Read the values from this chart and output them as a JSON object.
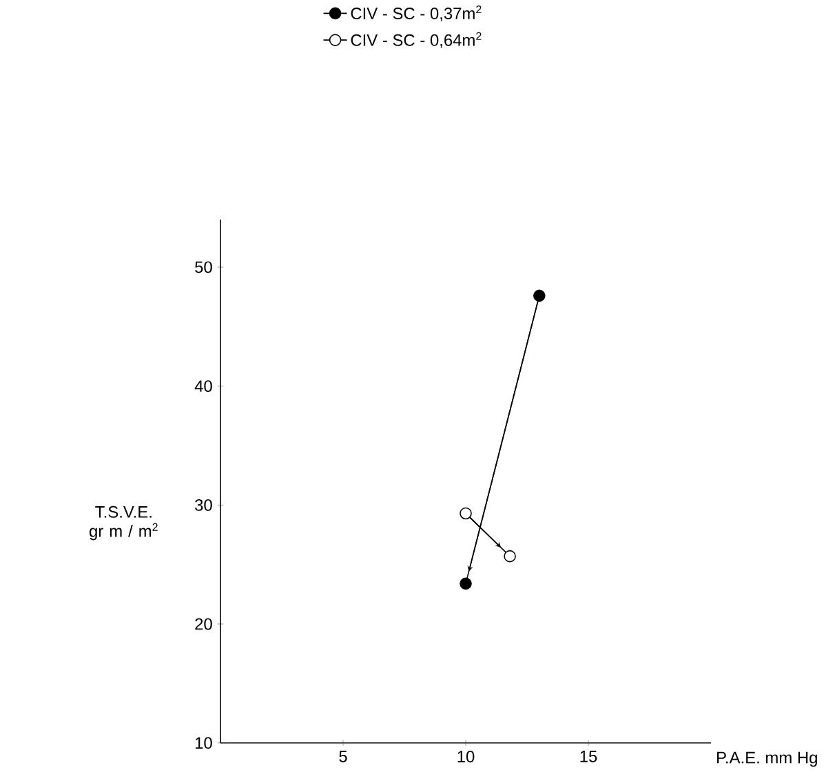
{
  "chart_data": {
    "type": "line",
    "xlabel": "P.A.E.  mm Hg",
    "ylabel": "T.S.V.E. gr m / m$^{2}$",
    "xlim": [
      0,
      20
    ],
    "ylim": [
      10,
      54
    ],
    "xticks": [
      5,
      10,
      15
    ],
    "yticks": [
      10,
      20,
      30,
      40,
      50
    ],
    "marker": "circle",
    "legend": "top",
    "grid": false,
    "series": [
      {
        "name": "CIV - SC - 0,37m$^{2}$",
        "color": "#000000",
        "x": [
          13,
          10
        ],
        "values": [
          47.6,
          23.4
        ]
      },
      {
        "name": "CIV - SC - 0,64m$^{2}$",
        "color": "#000000",
        "x": [
          10,
          11.8
        ],
        "values": [
          29.3,
          25.7
        ]
      }
    ]
  }
}
